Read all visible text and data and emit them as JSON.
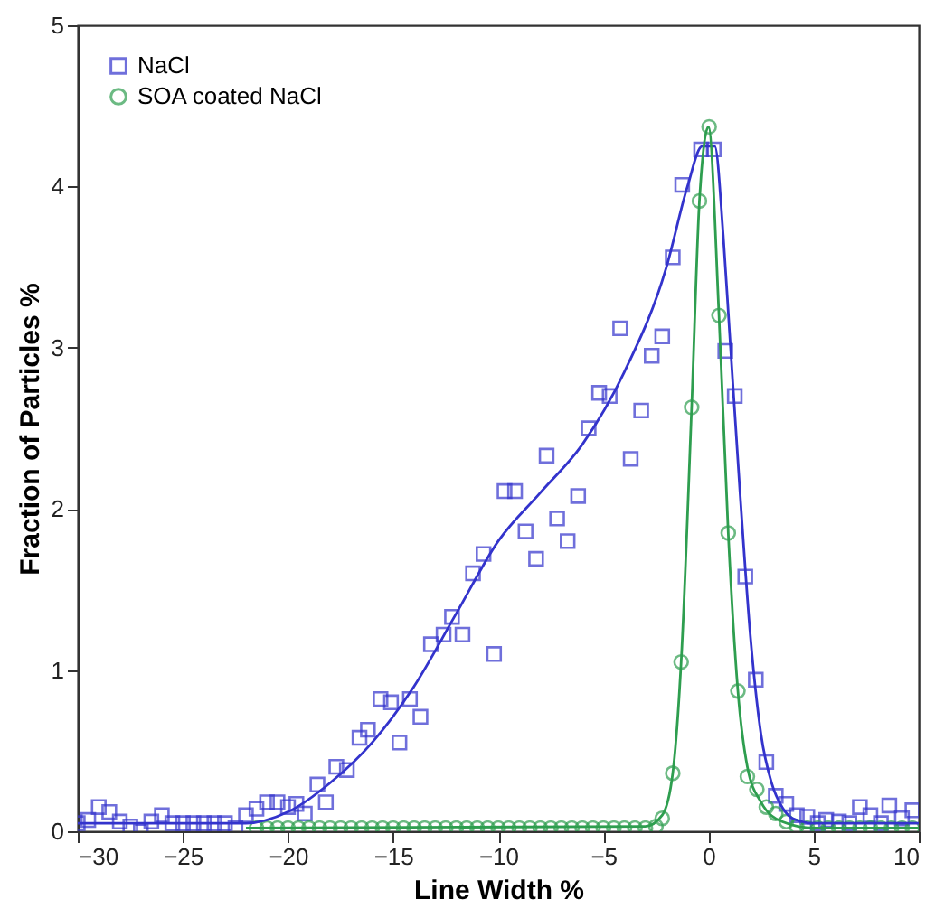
{
  "chart_data": {
    "type": "scatter",
    "xlabel": "Line Width %",
    "ylabel": "Fraction of Particles %",
    "xlim": [
      -30,
      10
    ],
    "ylim": [
      0,
      5
    ],
    "xticks": [
      -30,
      -25,
      -20,
      -15,
      -10,
      -5,
      0,
      5,
      10
    ],
    "yticks": [
      0,
      1,
      2,
      3,
      4,
      5
    ],
    "grid": false,
    "legend": "top left",
    "series": [
      {
        "name": "NaCl",
        "marker": "square",
        "color": "#3333cc",
        "x": [
          -30,
          -29.5,
          -29,
          -28.5,
          -28,
          -27.5,
          -27,
          -26.5,
          -26,
          -25.5,
          -25,
          -24.5,
          -24,
          -23.5,
          -23,
          -22.5,
          -22,
          -21.5,
          -21,
          -20.5,
          -20,
          -19.6,
          -19.2,
          -18.6,
          -18.2,
          -17.7,
          -17.2,
          -16.6,
          -16.2,
          -15.6,
          -15.1,
          -14.7,
          -14.2,
          -13.7,
          -13.2,
          -12.6,
          -12.2,
          -11.7,
          -11.2,
          -10.7,
          -10.2,
          -9.7,
          -9.2,
          -8.7,
          -8.2,
          -7.7,
          -7.2,
          -6.7,
          -6.2,
          -5.7,
          -5.2,
          -4.7,
          -4.2,
          -3.7,
          -3.2,
          -2.7,
          -2.2,
          -1.7,
          -1.25,
          -0.35,
          0.25,
          0.8,
          1.25,
          1.75,
          2.25,
          2.75,
          3.2,
          3.7,
          4.2,
          4.7,
          5.2,
          5.6,
          6.2,
          6.7,
          7.2,
          7.7,
          8.2,
          8.6,
          9.2,
          9.7
        ],
        "values": [
          0.05,
          0.07,
          0.15,
          0.12,
          0.06,
          0.03,
          0.0,
          0.06,
          0.1,
          0.05,
          0.05,
          0.05,
          0.05,
          0.05,
          0.05,
          0.02,
          0.1,
          0.14,
          0.18,
          0.18,
          0.15,
          0.17,
          0.11,
          0.29,
          0.18,
          0.4,
          0.38,
          0.58,
          0.63,
          0.82,
          0.8,
          0.55,
          0.82,
          0.71,
          1.16,
          1.22,
          1.33,
          1.22,
          1.6,
          1.72,
          1.1,
          2.11,
          2.11,
          1.86,
          1.69,
          2.33,
          1.94,
          1.8,
          2.08,
          2.5,
          2.72,
          2.7,
          3.12,
          2.31,
          2.61,
          2.95,
          3.07,
          3.56,
          4.01,
          4.23,
          4.23,
          2.98,
          2.7,
          1.58,
          0.94,
          0.43,
          0.22,
          0.17,
          0.1,
          0.09,
          0.05,
          0.07,
          0.06,
          0.05,
          0.15,
          0.1,
          0.05,
          0.16,
          0.08,
          0.13
        ]
      },
      {
        "name": "SOA coated NaCl",
        "marker": "circle",
        "color": "#2e9e4f",
        "x": [
          -21.5,
          -21,
          -20.5,
          -20,
          -19.5,
          -19,
          -18.5,
          -18,
          -17.5,
          -17,
          -16.5,
          -16,
          -15.5,
          -15,
          -14.5,
          -14,
          -13.5,
          -13,
          -12.5,
          -12,
          -11.5,
          -11,
          -10.5,
          -10,
          -9.5,
          -9,
          -8.5,
          -8,
          -7.5,
          -7,
          -6.5,
          -6,
          -5.5,
          -5,
          -4.5,
          -4,
          -3.5,
          -3,
          -2.5,
          -2.2,
          -1.7,
          -1.3,
          -0.8,
          -0.43,
          0.03,
          0.5,
          0.94,
          1.4,
          1.85,
          2.3,
          2.75,
          3.2,
          3.7,
          4.2,
          4.7,
          5.2,
          5.7,
          6.2,
          6.7,
          7.2,
          7.7,
          8.2,
          8.7,
          9.2,
          9.7
        ],
        "values": [
          0.02,
          0.02,
          0.02,
          0.02,
          0.02,
          0.02,
          0.02,
          0.02,
          0.02,
          0.02,
          0.02,
          0.02,
          0.02,
          0.02,
          0.02,
          0.02,
          0.02,
          0.02,
          0.02,
          0.02,
          0.02,
          0.02,
          0.02,
          0.02,
          0.02,
          0.02,
          0.02,
          0.02,
          0.02,
          0.02,
          0.02,
          0.02,
          0.02,
          0.02,
          0.02,
          0.02,
          0.02,
          0.02,
          0.03,
          0.08,
          0.36,
          1.05,
          2.63,
          3.91,
          4.37,
          3.2,
          1.85,
          0.87,
          0.34,
          0.26,
          0.15,
          0.11,
          0.06,
          0.03,
          0.02,
          0.02,
          0.02,
          0.02,
          0.02,
          0.02,
          0.02,
          0.02,
          0.02,
          0.02,
          0.02
        ]
      },
      {
        "type": "line",
        "marker": "none",
        "color": "#3333cc",
        "x": [
          -30,
          -22,
          -20,
          -18,
          -16,
          -14,
          -12,
          -10,
          -8,
          -6,
          -4,
          -2,
          -1,
          -0.3,
          0.3,
          0.7,
          1,
          1.5,
          2,
          2.5,
          3,
          3.5,
          4,
          5,
          10
        ],
        "values": [
          0.05,
          0.05,
          0.12,
          0.3,
          0.55,
          0.9,
          1.35,
          1.8,
          2.1,
          2.4,
          2.85,
          3.5,
          4.0,
          4.25,
          4.25,
          3.7,
          3.1,
          2.1,
          1.2,
          0.6,
          0.3,
          0.15,
          0.08,
          0.05,
          0.05
        ]
      },
      {
        "type": "line",
        "marker": "none",
        "color": "#2e9e4f",
        "x": [
          -22,
          -3,
          -2.2,
          -1.7,
          -1.3,
          -0.8,
          -0.43,
          0,
          0.5,
          0.94,
          1.4,
          1.85,
          2.5,
          3.5,
          5,
          10
        ],
        "values": [
          0.02,
          0.03,
          0.1,
          0.36,
          1.05,
          2.63,
          3.91,
          4.37,
          3.2,
          1.85,
          0.87,
          0.4,
          0.18,
          0.06,
          0.02,
          0.02
        ]
      }
    ]
  }
}
